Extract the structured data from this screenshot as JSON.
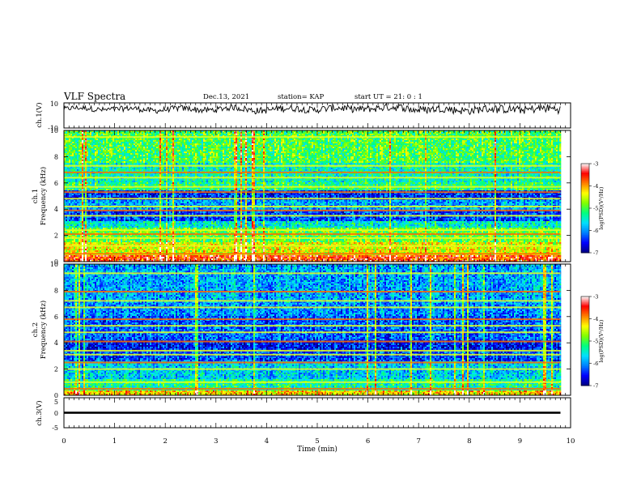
{
  "header": {
    "title": "VLF Spectra",
    "date": "Dec.13, 2021",
    "station": "station= KAP",
    "start": "start  UT =   21: 0  : 1"
  },
  "chart_data": [
    {
      "type": "line",
      "panel": "ch1-waveform",
      "ylabel": "ch.1(V)",
      "ylim": [
        -10,
        10
      ],
      "yticks": [
        "10",
        "-10"
      ],
      "xlim": [
        0,
        10
      ],
      "x_end": 9.8,
      "baseline": 5,
      "amplitude": 3.5,
      "color": "#000000"
    },
    {
      "type": "heatmap",
      "panel": "ch1-spectrogram",
      "ylabel": "ch.1\nFrequency  (kHz)",
      "ylim": [
        0,
        10
      ],
      "yticks": [
        "0",
        "2",
        "4",
        "6",
        "8",
        "10"
      ],
      "xlim": [
        0,
        10
      ],
      "x_end": 9.8,
      "value_range": [
        -7,
        -3
      ],
      "band_levels": [
        {
          "f": [
            0.0,
            0.5
          ],
          "level": -3.6
        },
        {
          "f": [
            0.5,
            1.5
          ],
          "level": -4.4
        },
        {
          "f": [
            1.5,
            2.6
          ],
          "level": -4.9
        },
        {
          "f": [
            2.6,
            3.1
          ],
          "level": -5.5
        },
        {
          "f": [
            3.1,
            4.0
          ],
          "level": -6.3
        },
        {
          "f": [
            4.0,
            4.7
          ],
          "level": -5.9
        },
        {
          "f": [
            4.7,
            5.4
          ],
          "level": -6.4
        },
        {
          "f": [
            5.4,
            6.0
          ],
          "level": -5.2
        },
        {
          "f": [
            6.0,
            7.5
          ],
          "level": -5.4
        },
        {
          "f": [
            7.5,
            10.0
          ],
          "level": -5.0
        }
      ],
      "lines_khz": [
        0.6,
        1.2,
        1.8,
        2.1,
        2.4,
        3.5,
        3.9,
        4.2,
        4.8,
        5.3,
        5.7,
        6.4,
        6.8,
        7.3,
        9.5
      ]
    },
    {
      "type": "heatmap",
      "panel": "ch2-spectrogram",
      "ylabel": "ch.2\nFrequency  (kHz)",
      "ylim": [
        0,
        10
      ],
      "yticks": [
        "0",
        "2",
        "4",
        "6",
        "8",
        "10"
      ],
      "xlim": [
        0,
        10
      ],
      "x_end": 9.8,
      "value_range": [
        -7,
        -3
      ],
      "band_levels": [
        {
          "f": [
            0.0,
            0.4
          ],
          "level": -4.2
        },
        {
          "f": [
            0.4,
            1.2
          ],
          "level": -5.3
        },
        {
          "f": [
            1.2,
            2.6
          ],
          "level": -5.7
        },
        {
          "f": [
            2.6,
            3.3
          ],
          "level": -6.3
        },
        {
          "f": [
            3.3,
            4.2
          ],
          "level": -6.5
        },
        {
          "f": [
            4.2,
            6.0
          ],
          "level": -6.2
        },
        {
          "f": [
            6.0,
            7.0
          ],
          "level": -6.0
        },
        {
          "f": [
            7.0,
            10.0
          ],
          "level": -5.9
        }
      ],
      "lines_khz": [
        0.5,
        1.0,
        2.0,
        2.5,
        3.1,
        3.4,
        4.1,
        4.8,
        5.3,
        5.8,
        6.7,
        7.2,
        7.9,
        9.3
      ]
    },
    {
      "type": "line",
      "panel": "ch3-waveform",
      "ylabel": "ch.3(V)",
      "ylim": [
        -5,
        5
      ],
      "yticks": [
        "5",
        "0",
        "-5"
      ],
      "xlim": [
        0,
        10
      ],
      "x_end": 9.8,
      "baseline": 0,
      "amplitude": 0.35,
      "color": "#000000",
      "xlabel": "Time  (min)",
      "xticks": [
        "0",
        "1",
        "2",
        "3",
        "4",
        "5",
        "6",
        "7",
        "8",
        "9",
        "10"
      ]
    }
  ],
  "colorbars": [
    {
      "label": "log(PSD)(V²/Hz)",
      "ticks": [
        "-3",
        "-4",
        "-5",
        "-6",
        "-7"
      ],
      "colors": [
        "#000080",
        "#0000ff",
        "#0080ff",
        "#00e0ff",
        "#00ff80",
        "#80ff00",
        "#ffff00",
        "#ff8000",
        "#ff0000",
        "#ffffff"
      ]
    },
    {
      "label": "log(PSD)(V²/Hz)",
      "ticks": [
        "-3",
        "-4",
        "-5",
        "-6",
        "-7"
      ],
      "colors": [
        "#000080",
        "#0000ff",
        "#0080ff",
        "#00e0ff",
        "#00ff80",
        "#80ff00",
        "#ffff00",
        "#ff8000",
        "#ff0000",
        "#ffffff"
      ]
    }
  ]
}
